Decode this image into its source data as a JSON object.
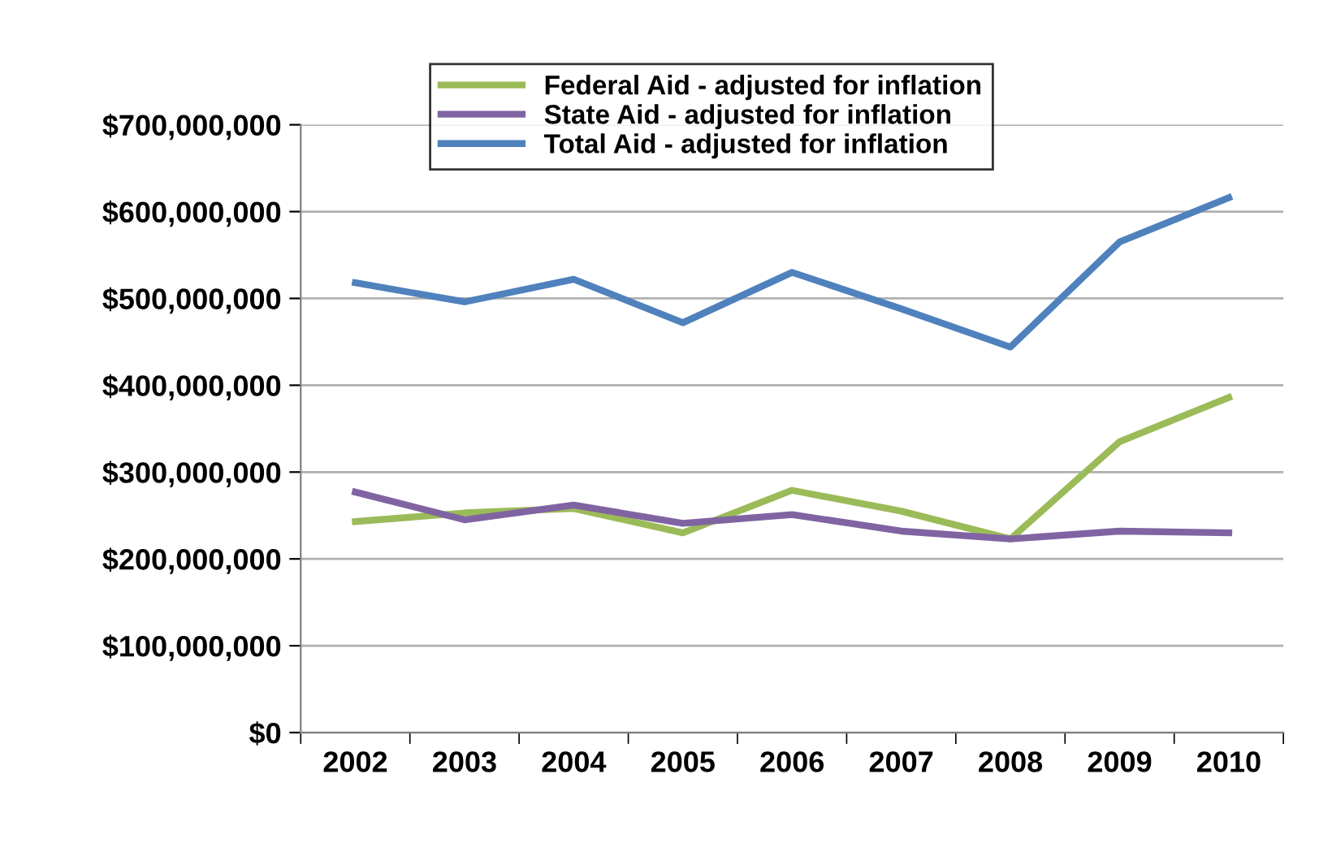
{
  "chart_data": {
    "type": "line",
    "categories": [
      "2002",
      "2003",
      "2004",
      "2005",
      "2006",
      "2007",
      "2008",
      "2009",
      "2010"
    ],
    "series": [
      {
        "name": "Federal Aid - adjusted for inflation",
        "color": "#9bbb59",
        "values": [
          243000000,
          253000000,
          258000000,
          230000000,
          279000000,
          255000000,
          223000000,
          335000000,
          386000000
        ]
      },
      {
        "name": "State Aid - adjusted for inflation",
        "color": "#8064a2",
        "values": [
          277000000,
          245000000,
          262000000,
          241000000,
          251000000,
          232000000,
          223000000,
          232000000,
          230000000
        ]
      },
      {
        "name": "Total Aid - adjusted for inflation",
        "color": "#4f81bd",
        "values": [
          518000000,
          496000000,
          522000000,
          472000000,
          530000000,
          488000000,
          444000000,
          565000000,
          616000000
        ]
      }
    ],
    "ylim": [
      0,
      700000000
    ],
    "yticks": [
      {
        "value": 0,
        "label": "$0"
      },
      {
        "value": 100000000,
        "label": "$100,000,000"
      },
      {
        "value": 200000000,
        "label": "$200,000,000"
      },
      {
        "value": 300000000,
        "label": "$300,000,000"
      },
      {
        "value": 400000000,
        "label": "$400,000,000"
      },
      {
        "value": 500000000,
        "label": "$500,000,000"
      },
      {
        "value": 600000000,
        "label": "$600,000,000"
      },
      {
        "value": 700000000,
        "label": "$700,000,000"
      }
    ],
    "grid": "y",
    "legend": "top",
    "marker": "none",
    "line_style": "solid"
  }
}
